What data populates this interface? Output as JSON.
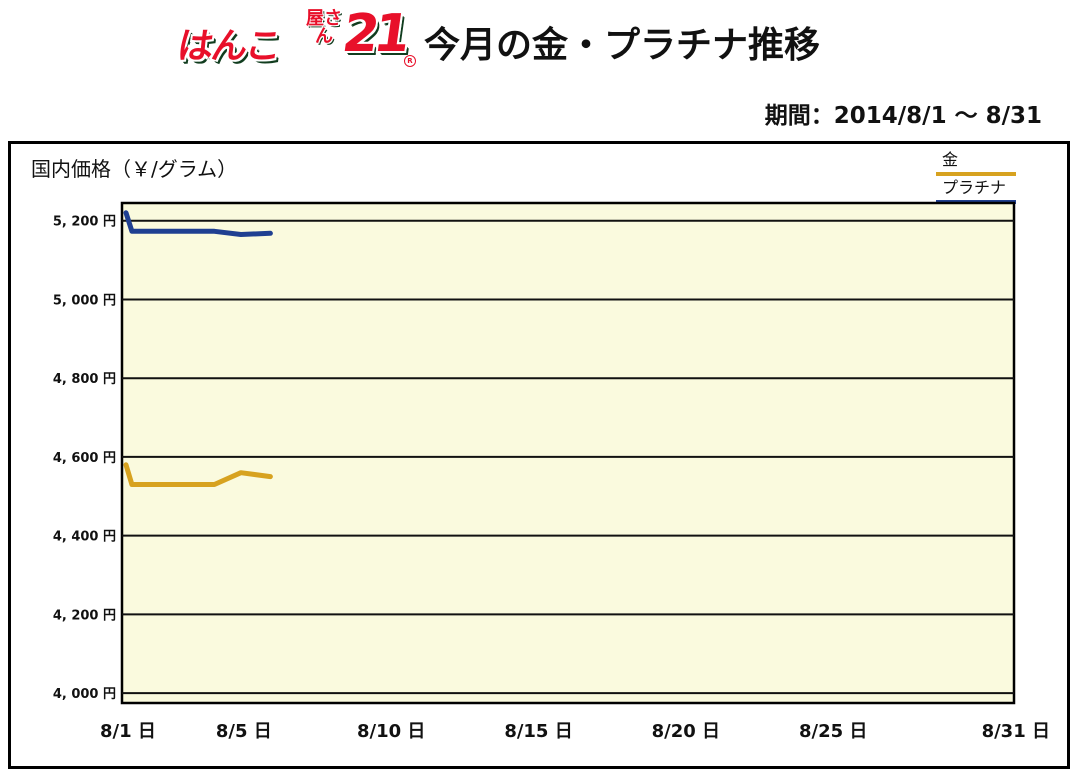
{
  "header": {
    "brand": {
      "main": "はんこ",
      "sub": "屋さん",
      "number": "21",
      "registered": "R"
    },
    "title": "今月の金・プラチナ推移",
    "period": "期間：2014/8/1 ～ 8/31"
  },
  "colors": {
    "plot_bg": "#fafade",
    "gold": "#d7a21f",
    "platinum": "#1f3f91",
    "grid": "#111111",
    "frame": "#000000"
  },
  "chart_data": {
    "type": "line",
    "ylabel": "国内価格（￥/グラム）",
    "x_tick_labels": [
      "8/1 日",
      "8/5 日",
      "8/10 日",
      "8/15 日",
      "8/20 日",
      "8/25 日",
      "8/31 日"
    ],
    "x_tick_values": [
      1,
      5,
      10,
      15,
      20,
      25,
      31
    ],
    "xlim": [
      1,
      31
    ],
    "ylim": [
      3975,
      5245
    ],
    "y_tick_labels": [
      "4, 000 円",
      "4, 200 円",
      "4, 400 円",
      "4, 600 円",
      "4, 800 円",
      "5, 000 円",
      "5, 200 円"
    ],
    "y_tick_values": [
      4000,
      4200,
      4400,
      4600,
      4800,
      5000,
      5200
    ],
    "grid": true,
    "legend_position": "top-right",
    "series": [
      {
        "name": "金",
        "color": "#d7a21f",
        "points": [
          [
            1,
            4580
          ],
          [
            1.2,
            4530
          ],
          [
            4,
            4530
          ],
          [
            4.9,
            4560
          ],
          [
            5.9,
            4550
          ]
        ]
      },
      {
        "name": "プラチナ",
        "color": "#1f3f91",
        "points": [
          [
            1,
            5220
          ],
          [
            1.2,
            5173
          ],
          [
            4,
            5173
          ],
          [
            4.9,
            5165
          ],
          [
            5.9,
            5168
          ]
        ]
      }
    ]
  }
}
